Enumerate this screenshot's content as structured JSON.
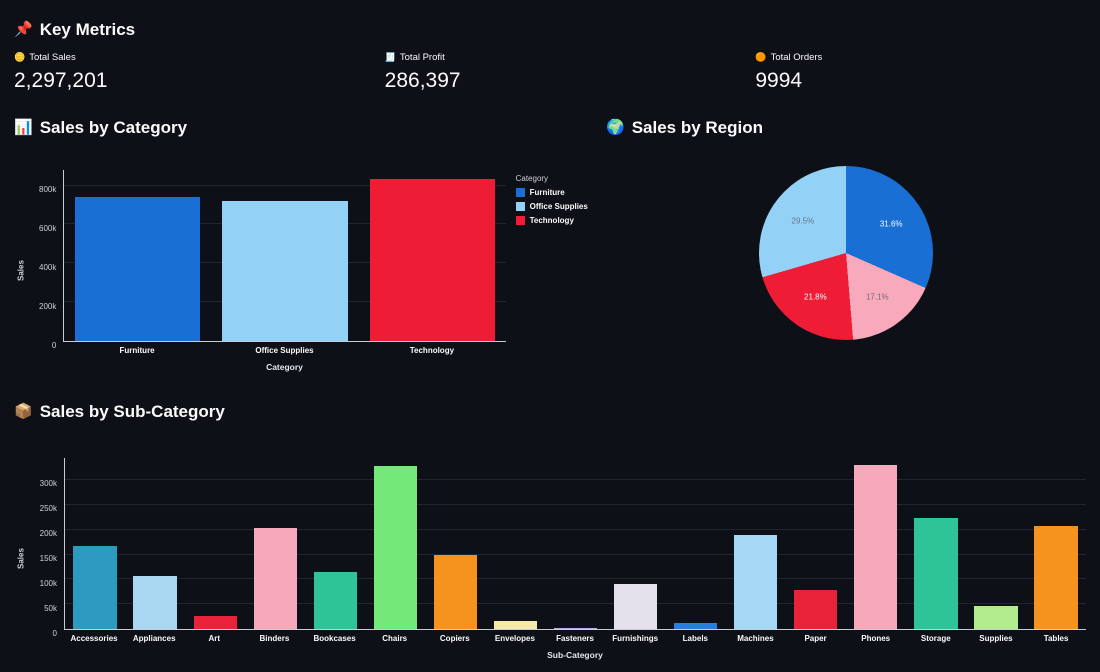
{
  "page": {
    "background": "#0d1117"
  },
  "key_metrics": {
    "icon": "📌",
    "title": "Key Metrics",
    "items": [
      {
        "icon": "🪙",
        "label": "Total Sales",
        "value": "2,297,201"
      },
      {
        "icon": "🧾",
        "label": "Total Profit",
        "value": "286,397"
      },
      {
        "icon": "🟠",
        "label": "Total Orders",
        "value": "9994"
      }
    ]
  },
  "sections": {
    "category": {
      "icon": "📊",
      "title": "Sales by Category"
    },
    "region": {
      "icon": "🌍",
      "title": "Sales by Region"
    },
    "subcategory": {
      "icon": "📦",
      "title": "Sales by Sub-Category"
    }
  },
  "chart_data": [
    {
      "type": "bar",
      "title": "Sales by Category",
      "categories": [
        "Furniture",
        "Office Supplies",
        "Technology"
      ],
      "values": [
        742000,
        719047,
        836154
      ],
      "colors": [
        "#1a6fd4",
        "#93d1f7",
        "#ee1d35"
      ],
      "xlabel": "Category",
      "ylabel": "Sales",
      "ylim": [
        0,
        880000
      ],
      "yticks": [
        0,
        200000,
        400000,
        600000,
        800000
      ],
      "ytick_labels": [
        "0",
        "200k",
        "400k",
        "600k",
        "800k"
      ],
      "grid": true,
      "legend": {
        "title": "Category",
        "position": "right",
        "entries": [
          {
            "label": "Furniture",
            "color": "#1a6fd4"
          },
          {
            "label": "Office Supplies",
            "color": "#93d1f7"
          },
          {
            "label": "Technology",
            "color": "#ee1d35"
          }
        ]
      }
    },
    {
      "type": "pie",
      "title": "Sales by Region",
      "slices": [
        {
          "label": "31.6%",
          "value": 31.6,
          "color": "#1a6fd4",
          "text_color": "#ffffff"
        },
        {
          "label": "17.1%",
          "value": 17.1,
          "color": "#f8a9bc",
          "text_color": "#6e6e78"
        },
        {
          "label": "21.8%",
          "value": 21.8,
          "color": "#ee1d35",
          "text_color": "#ffffff"
        },
        {
          "label": "29.5%",
          "value": 29.5,
          "color": "#93d1f7",
          "text_color": "#677785"
        }
      ]
    },
    {
      "type": "bar",
      "title": "Sales by Sub-Category",
      "categories": [
        "Accessories",
        "Appliances",
        "Art",
        "Binders",
        "Bookcases",
        "Chairs",
        "Copiers",
        "Envelopes",
        "Fasteners",
        "Furnishings",
        "Labels",
        "Machines",
        "Paper",
        "Phones",
        "Storage",
        "Supplies",
        "Tables"
      ],
      "values": [
        167380,
        107532,
        27119,
        203413,
        114880,
        328449,
        149528,
        16476,
        3024,
        91705,
        12486,
        189239,
        78479,
        330007,
        223844,
        46674,
        206966
      ],
      "colors": [
        "#2d9bbf",
        "#a9d7f2",
        "#e82339",
        "#f6a9ba",
        "#2fc498",
        "#74e878",
        "#f6921e",
        "#f7e9a9",
        "#b9aee8",
        "#e4e1ec",
        "#2a7fd4",
        "#a5d8f5",
        "#e82339",
        "#f6a9ba",
        "#2fc498",
        "#b2ec8f",
        "#f6921e"
      ],
      "xlabel": "Sub-Category",
      "ylabel": "Sales",
      "ylim": [
        0,
        345000
      ],
      "yticks": [
        0,
        50000,
        100000,
        150000,
        200000,
        250000,
        300000
      ],
      "ytick_labels": [
        "0",
        "50k",
        "100k",
        "150k",
        "200k",
        "250k",
        "300k"
      ],
      "grid": true
    }
  ]
}
